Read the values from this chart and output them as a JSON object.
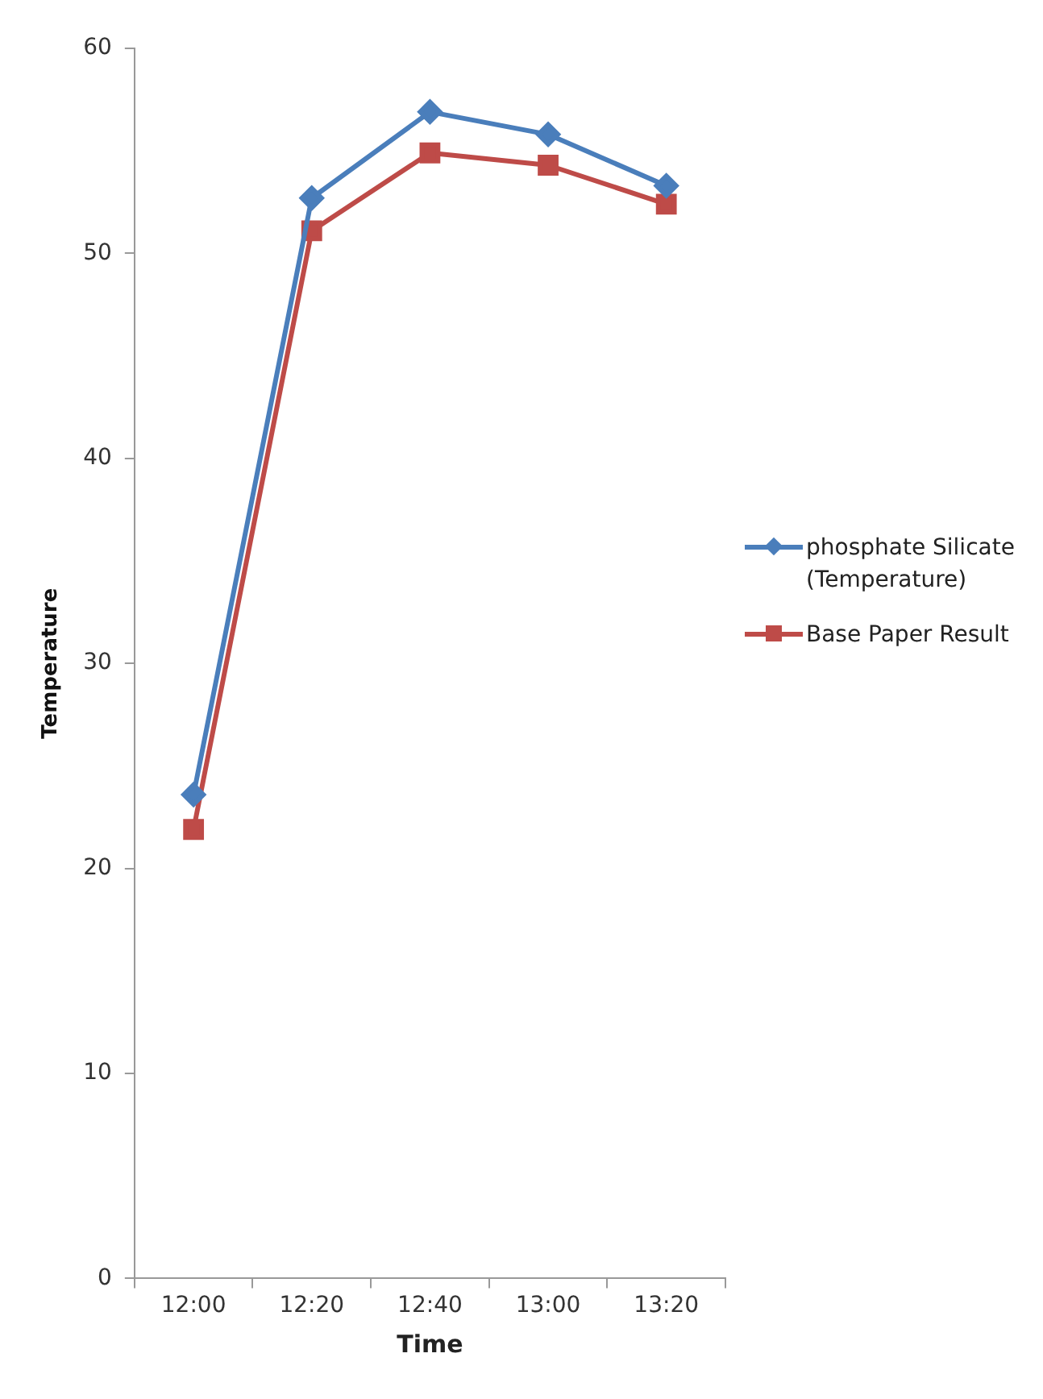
{
  "chart_data": {
    "type": "line",
    "xlabel": "Time",
    "ylabel": "Temperature",
    "categories": [
      "12:00",
      "12:20",
      "12:40",
      "13:00",
      "13:20"
    ],
    "series": [
      {
        "name": "phosphate Silicate (Temperature)",
        "color": "#4a7ebb",
        "marker": "diamond",
        "values": [
          23.6,
          52.7,
          56.9,
          55.8,
          53.3
        ]
      },
      {
        "name": "Base Paper Result",
        "color": "#be4b48",
        "marker": "square",
        "values": [
          21.9,
          51.1,
          54.9,
          54.3,
          52.4
        ]
      }
    ],
    "ylim": [
      0,
      60
    ],
    "yticks": [
      0,
      10,
      20,
      30,
      40,
      50,
      60
    ],
    "grid": false,
    "legend": "right",
    "line_style": "solid"
  }
}
